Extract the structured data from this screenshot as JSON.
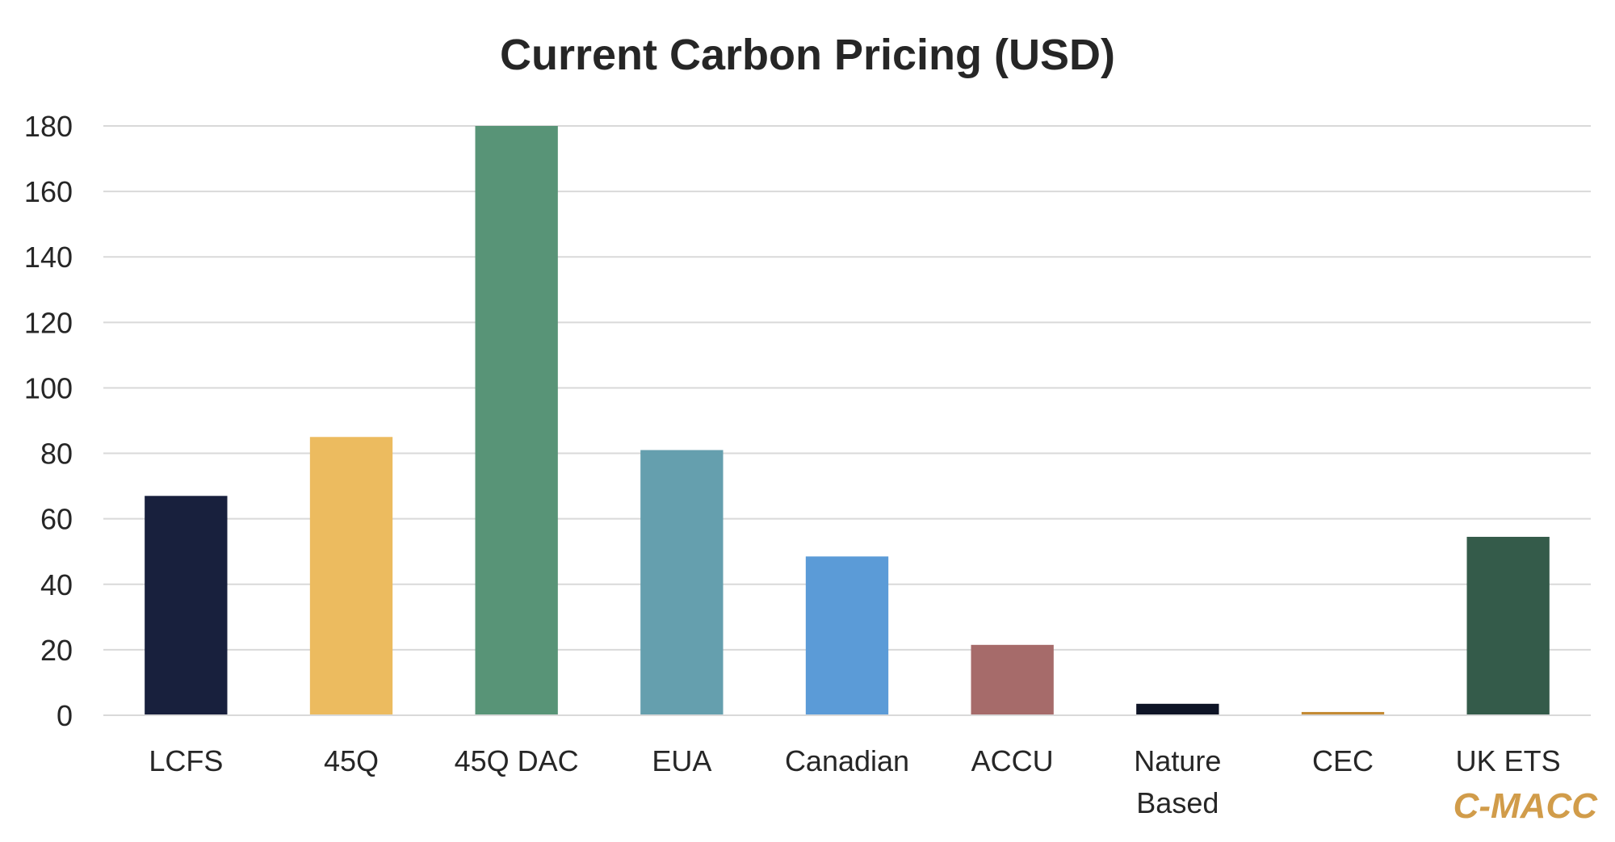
{
  "chart_data": {
    "type": "bar",
    "title": "Current Carbon Pricing (USD)",
    "xlabel": "",
    "ylabel": "",
    "ylim": [
      0,
      180
    ],
    "yticks": [
      0,
      20,
      40,
      60,
      80,
      100,
      120,
      140,
      160,
      180
    ],
    "grid": true,
    "legend": "none",
    "categories": [
      "LCFS",
      "45Q",
      "45Q DAC",
      "EUA",
      "Canadian",
      "ACCU",
      "Nature Based",
      "CEC",
      "UK ETS"
    ],
    "category_lines": [
      [
        "LCFS"
      ],
      [
        "45Q"
      ],
      [
        "45Q DAC"
      ],
      [
        "EUA"
      ],
      [
        "Canadian"
      ],
      [
        "ACCU"
      ],
      [
        "Nature",
        "Based"
      ],
      [
        "CEC"
      ],
      [
        "UK ETS"
      ]
    ],
    "values": [
      67,
      85,
      180,
      81,
      48.5,
      21.5,
      3.5,
      1,
      54.5
    ],
    "colors": [
      "#18203d",
      "#ecbb5f",
      "#589477",
      "#659fae",
      "#5b9bd7",
      "#a66b6a",
      "#0e1426",
      "#c48a34",
      "#345b4a"
    ],
    "watermark": "C-MACC",
    "watermark_color": "#d19c4a"
  }
}
